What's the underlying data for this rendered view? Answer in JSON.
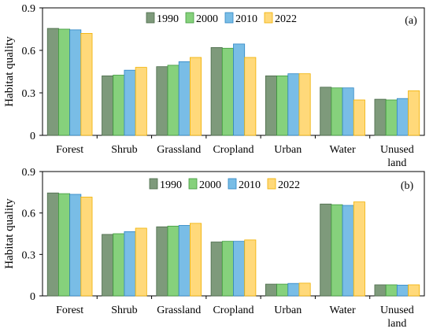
{
  "chart_data": [
    {
      "type": "bar",
      "panel_label": "(a)",
      "ylabel": "Habitat quality",
      "ylim": [
        0,
        0.9
      ],
      "yticks": [
        "0",
        "0.3",
        "0.6",
        "0.9"
      ],
      "ytick_values": [
        0,
        0.3,
        0.6,
        0.9
      ],
      "categories": [
        "Forest",
        "Shrub",
        "Grassland",
        "Cropland",
        "Urban",
        "Water",
        "Unused land"
      ],
      "category_lines": [
        [
          "Forest"
        ],
        [
          "Shrub"
        ],
        [
          "Grassland"
        ],
        [
          "Cropland"
        ],
        [
          "Urban"
        ],
        [
          "Water"
        ],
        [
          "Unused",
          "land"
        ]
      ],
      "legend_position": "top-center",
      "grid": false,
      "series": [
        {
          "name": "1990",
          "values": [
            0.755,
            0.42,
            0.485,
            0.62,
            0.42,
            0.34,
            0.255
          ]
        },
        {
          "name": "2000",
          "values": [
            0.75,
            0.425,
            0.495,
            0.615,
            0.42,
            0.335,
            0.25
          ]
        },
        {
          "name": "2010",
          "values": [
            0.745,
            0.46,
            0.52,
            0.645,
            0.435,
            0.335,
            0.26
          ]
        },
        {
          "name": "2022",
          "values": [
            0.72,
            0.48,
            0.55,
            0.55,
            0.435,
            0.25,
            0.315
          ]
        }
      ]
    },
    {
      "type": "bar",
      "panel_label": "(b)",
      "ylabel": "Habitat quality",
      "ylim": [
        0,
        0.9
      ],
      "yticks": [
        "0",
        "0.3",
        "0.6",
        "0.9"
      ],
      "ytick_values": [
        0,
        0.3,
        0.6,
        0.9
      ],
      "categories": [
        "Forest",
        "Shrub",
        "Grassland",
        "Cropland",
        "Urban",
        "Water",
        "Unused land"
      ],
      "category_lines": [
        [
          "Forest"
        ],
        [
          "Shrub"
        ],
        [
          "Grassland"
        ],
        [
          "Cropland"
        ],
        [
          "Urban"
        ],
        [
          "Water"
        ],
        [
          "Unused",
          "land"
        ]
      ],
      "legend_position": "top-center",
      "grid": false,
      "series": [
        {
          "name": "1990",
          "values": [
            0.745,
            0.445,
            0.5,
            0.39,
            0.085,
            0.665,
            0.08
          ]
        },
        {
          "name": "2000",
          "values": [
            0.74,
            0.45,
            0.505,
            0.395,
            0.085,
            0.66,
            0.08
          ]
        },
        {
          "name": "2010",
          "values": [
            0.735,
            0.465,
            0.51,
            0.395,
            0.09,
            0.655,
            0.078
          ]
        },
        {
          "name": "2022",
          "values": [
            0.715,
            0.49,
            0.525,
            0.405,
            0.092,
            0.68,
            0.08
          ]
        }
      ]
    }
  ],
  "colors": {
    "series_fill": [
      "#7e9a7b",
      "#86d17c",
      "#79bde6",
      "#ffd97a"
    ],
    "series_stroke": [
      "#4b6b4a",
      "#3f9a3c",
      "#2f86c4",
      "#f0b000"
    ],
    "frame": "#000000"
  }
}
